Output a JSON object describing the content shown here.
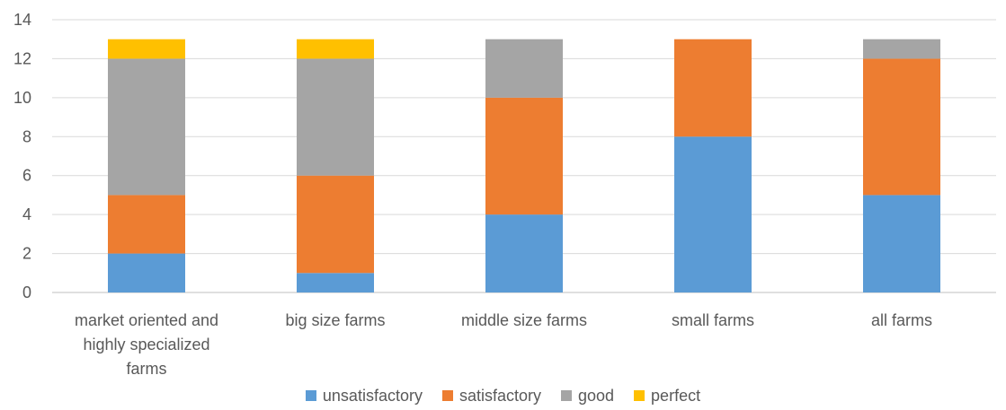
{
  "chart_data": {
    "type": "bar",
    "stacked": true,
    "title": "",
    "xlabel": "",
    "ylabel": "",
    "ylim": [
      0,
      14
    ],
    "yticks": [
      0,
      2,
      4,
      6,
      8,
      10,
      12,
      14
    ],
    "grid": true,
    "legend_position": "bottom",
    "categories": [
      [
        "market oriented and",
        "highly specialized",
        "farms"
      ],
      [
        "big size farms"
      ],
      [
        "middle size farms"
      ],
      [
        "small farms"
      ],
      [
        "all farms"
      ]
    ],
    "series": [
      {
        "name": "unsatisfactory",
        "color": "#5B9BD5",
        "values": [
          2,
          1,
          4,
          8,
          5
        ]
      },
      {
        "name": "satisfactory",
        "color": "#ED7D31",
        "values": [
          3,
          5,
          6,
          5,
          7
        ]
      },
      {
        "name": "good",
        "color": "#A5A5A5",
        "values": [
          7,
          6,
          3,
          0,
          1
        ]
      },
      {
        "name": "perfect",
        "color": "#FFC000",
        "values": [
          1,
          1,
          0,
          0,
          0
        ]
      }
    ]
  }
}
